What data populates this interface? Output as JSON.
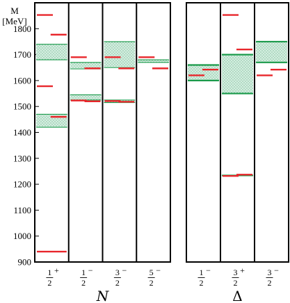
{
  "chart_data": {
    "type": "level-diagram",
    "yaxis": {
      "label_top": "M",
      "label_unit": "[MeV]",
      "ylim": [
        900,
        1900
      ],
      "ticks": [
        900,
        1000,
        1100,
        1200,
        1300,
        1400,
        1500,
        1600,
        1700,
        1800
      ]
    },
    "colors": {
      "theory": "#e8262b",
      "experiment": "#1a9a4a",
      "band_fill": "#d4eee0",
      "frame": "#000000"
    },
    "panels": [
      {
        "group": "N",
        "columns": [
          {
            "jp": {
              "num": "1",
              "den": "2",
              "parity": "+"
            },
            "theory": [
              {
                "mass": 1853,
                "side": "left"
              },
              {
                "mass": 1777,
                "side": "right"
              },
              {
                "mass": 1578,
                "side": "left"
              },
              {
                "mass": 1460,
                "side": "right"
              },
              {
                "mass": 940,
                "side": "full"
              }
            ],
            "experiment": [
              {
                "low": 1680,
                "high": 1740
              },
              {
                "low": 1420,
                "high": 1470
              }
            ]
          },
          {
            "jp": {
              "num": "1",
              "den": "2",
              "parity": "−"
            },
            "theory": [
              {
                "mass": 1690,
                "side": "left"
              },
              {
                "mass": 1647,
                "side": "right"
              },
              {
                "mass": 1523,
                "side": "left"
              },
              {
                "mass": 1520,
                "side": "right"
              }
            ],
            "experiment": [
              {
                "low": 1645,
                "high": 1670
              },
              {
                "low": 1525,
                "high": 1545
              }
            ]
          },
          {
            "jp": {
              "num": "3",
              "den": "2",
              "parity": "−"
            },
            "theory": [
              {
                "mass": 1690,
                "side": "left"
              },
              {
                "mass": 1647,
                "side": "right"
              },
              {
                "mass": 1521,
                "side": "left"
              },
              {
                "mass": 1518,
                "side": "right"
              }
            ],
            "experiment": [
              {
                "low": 1650,
                "high": 1750
              },
              {
                "low": 1515,
                "high": 1525
              }
            ]
          },
          {
            "jp": {
              "num": "5",
              "den": "2",
              "parity": "−"
            },
            "theory": [
              {
                "mass": 1690,
                "side": "left"
              },
              {
                "mass": 1647,
                "side": "right"
              }
            ],
            "experiment": [
              {
                "low": 1670,
                "high": 1680
              }
            ]
          }
        ]
      },
      {
        "group": "Δ",
        "columns": [
          {
            "jp": {
              "num": "1",
              "den": "2",
              "parity": "−"
            },
            "theory": [
              {
                "mass": 1620,
                "side": "left"
              },
              {
                "mass": 1642,
                "side": "right"
              }
            ],
            "experiment": [
              {
                "low": 1600,
                "high": 1660
              }
            ]
          },
          {
            "jp": {
              "num": "3",
              "den": "2",
              "parity": "+"
            },
            "theory": [
              {
                "mass": 1853,
                "side": "left"
              },
              {
                "mass": 1720,
                "side": "right"
              },
              {
                "mass": 1232,
                "side": "left"
              },
              {
                "mass": 1237,
                "side": "right"
              }
            ],
            "experiment": [
              {
                "low": 1550,
                "high": 1700
              },
              {
                "low": 1230,
                "high": 1234
              }
            ]
          },
          {
            "jp": {
              "num": "3",
              "den": "2",
              "parity": "−"
            },
            "theory": [
              {
                "mass": 1620,
                "side": "left"
              },
              {
                "mass": 1642,
                "side": "right"
              }
            ],
            "experiment": [
              {
                "low": 1670,
                "high": 1750
              }
            ]
          }
        ]
      }
    ]
  }
}
